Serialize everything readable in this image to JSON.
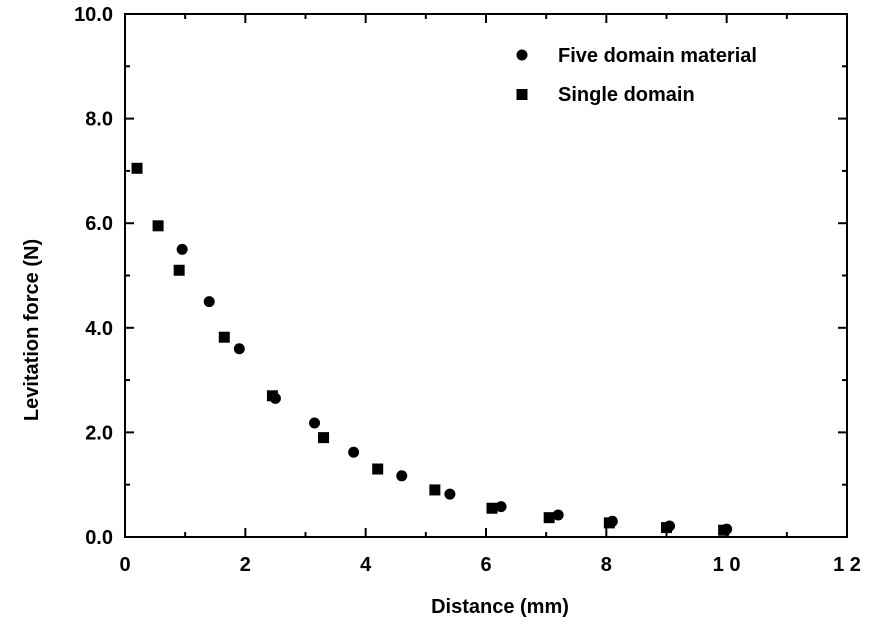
{
  "chart_data": {
    "type": "scatter",
    "xlabel": "Distance  (mm)",
    "ylabel": "Levitation force  (N)",
    "xlim": [
      0,
      12
    ],
    "ylim": [
      0,
      10
    ],
    "xticks": [
      0,
      2,
      4,
      6,
      8,
      10,
      12
    ],
    "xtick_labels": [
      "0",
      "2",
      "4",
      "6",
      "8",
      "1 0",
      "1 2"
    ],
    "yticks": [
      0,
      2,
      4,
      6,
      8,
      10
    ],
    "ytick_labels": [
      "0.0",
      "2.0",
      "4.0",
      "6.0",
      "8.0",
      "10.0"
    ],
    "grid": false,
    "legend_position": "top-right",
    "series": [
      {
        "name": "Five domain material",
        "marker": "circle",
        "x": [
          0.95,
          1.4,
          1.9,
          2.5,
          3.15,
          3.8,
          4.6,
          5.4,
          6.25,
          7.2,
          8.1,
          9.05,
          10.0
        ],
        "y": [
          5.5,
          4.5,
          3.6,
          2.65,
          2.18,
          1.62,
          1.17,
          0.82,
          0.58,
          0.42,
          0.3,
          0.21,
          0.15
        ]
      },
      {
        "name": "Single domain",
        "marker": "square",
        "x": [
          0.2,
          0.55,
          0.9,
          1.65,
          2.45,
          3.3,
          4.2,
          5.15,
          6.1,
          7.05,
          8.05,
          9.0,
          9.95
        ],
        "y": [
          7.05,
          5.95,
          5.1,
          3.82,
          2.7,
          1.9,
          1.3,
          0.9,
          0.55,
          0.37,
          0.27,
          0.18,
          0.13
        ]
      }
    ]
  }
}
